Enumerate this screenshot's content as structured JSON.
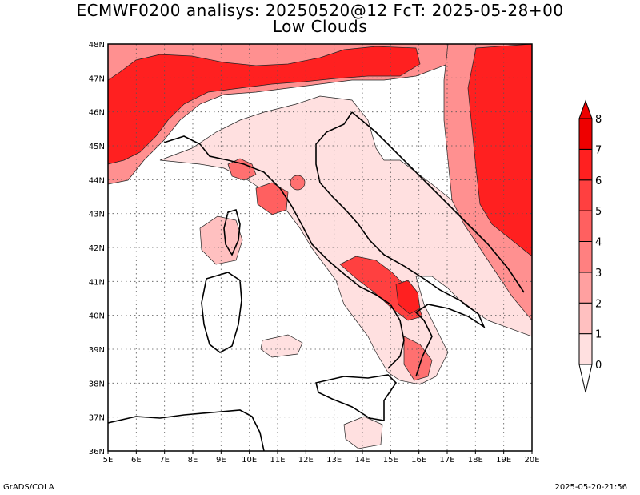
{
  "title_line1": "ECMWF0200 analisys: 20250520@12 FcT: 2025-05-28+00",
  "title_line2": "Low Clouds",
  "footer_left": "GrADS/COLA",
  "footer_right": "2025-05-20-21:56",
  "map": {
    "lon_labels": [
      "5E",
      "6E",
      "7E",
      "8E",
      "9E",
      "10E",
      "11E",
      "12E",
      "13E",
      "14E",
      "15E",
      "16E",
      "17E",
      "18E",
      "19E",
      "20E"
    ],
    "lat_labels": [
      "48N",
      "47N",
      "46N",
      "45N",
      "44N",
      "43N",
      "42N",
      "41N",
      "40N",
      "39N",
      "38N",
      "37N",
      "36N"
    ],
    "lon_range": [
      5,
      20
    ],
    "lat_range": [
      36,
      48
    ],
    "grid": "dotted"
  },
  "colorbar": {
    "ticks": [
      "0",
      "1",
      "2",
      "3",
      "4",
      "5",
      "6",
      "7",
      "8"
    ],
    "colors": [
      "#ffffff",
      "#ffe0e0",
      "#ffc0c0",
      "#ffa0a0",
      "#ff8080",
      "#ff6060",
      "#ff4040",
      "#ff2020",
      "#ee0000"
    ]
  },
  "colors": {
    "land_low": "#ffe0e0",
    "cloud_mid": "#ff9090",
    "cloud_high": "#ff2020"
  }
}
